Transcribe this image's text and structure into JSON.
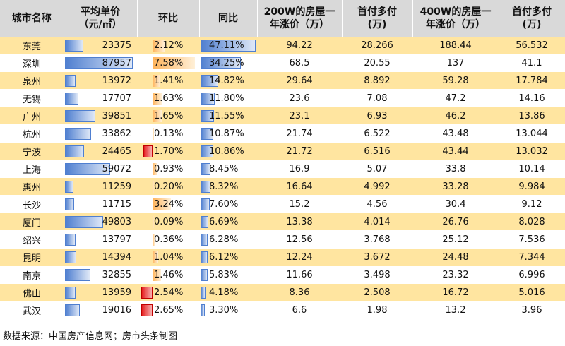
{
  "headers": {
    "city": "城市名称",
    "avg_price": "平均单价\n（元/㎡）",
    "mom": "环比",
    "yoy": "同比",
    "rise_200w": "200W的房屋一\n年涨价（万）",
    "down_200w": "首付多付\n(万)",
    "rise_400w": "400W的房屋一\n年涨价（万）",
    "down_400w": "首付多付\n(万)"
  },
  "rows": [
    {
      "city": "东莞",
      "price": "23375",
      "price_num": 23375,
      "mom": "2.12%",
      "mom_num": 2.12,
      "yoy": "47.11%",
      "yoy_num": 47.11,
      "r200": "94.22",
      "d200": "28.266",
      "r400": "188.44",
      "d400": "56.532"
    },
    {
      "city": "深圳",
      "price": "87957",
      "price_num": 87957,
      "mom": "7.58%",
      "mom_num": 7.58,
      "yoy": "34.25%",
      "yoy_num": 34.25,
      "r200": "68.5",
      "d200": "20.55",
      "r400": "137",
      "d400": "41.1"
    },
    {
      "city": "泉州",
      "price": "13972",
      "price_num": 13972,
      "mom": "1.41%",
      "mom_num": 1.41,
      "yoy": "14.82%",
      "yoy_num": 14.82,
      "r200": "29.64",
      "d200": "8.892",
      "r400": "59.28",
      "d400": "17.784"
    },
    {
      "city": "无锡",
      "price": "17707",
      "price_num": 17707,
      "mom": "1.63%",
      "mom_num": 1.63,
      "yoy": "11.80%",
      "yoy_num": 11.8,
      "r200": "23.6",
      "d200": "7.08",
      "r400": "47.2",
      "d400": "14.16"
    },
    {
      "city": "广州",
      "price": "39851",
      "price_num": 39851,
      "mom": "1.65%",
      "mom_num": 1.65,
      "yoy": "11.55%",
      "yoy_num": 11.55,
      "r200": "23.1",
      "d200": "6.93",
      "r400": "46.2",
      "d400": "13.86"
    },
    {
      "city": "杭州",
      "price": "33862",
      "price_num": 33862,
      "mom": "0.13%",
      "mom_num": 0.13,
      "yoy": "10.87%",
      "yoy_num": 10.87,
      "r200": "21.74",
      "d200": "6.522",
      "r400": "43.48",
      "d400": "13.044"
    },
    {
      "city": "宁波",
      "price": "24465",
      "price_num": 24465,
      "mom": "1.70%",
      "mom_num": -1.7,
      "yoy": "10.86%",
      "yoy_num": 10.86,
      "r200": "21.72",
      "d200": "6.516",
      "r400": "43.44",
      "d400": "13.032"
    },
    {
      "city": "上海",
      "price": "59072",
      "price_num": 59072,
      "mom": "0.93%",
      "mom_num": 0.93,
      "yoy": "8.45%",
      "yoy_num": 8.45,
      "r200": "16.9",
      "d200": "5.07",
      "r400": "33.8",
      "d400": "10.14"
    },
    {
      "city": "惠州",
      "price": "11259",
      "price_num": 11259,
      "mom": "0.20%",
      "mom_num": 0.2,
      "yoy": "8.32%",
      "yoy_num": 8.32,
      "r200": "16.64",
      "d200": "4.992",
      "r400": "33.28",
      "d400": "9.984"
    },
    {
      "city": "长沙",
      "price": "11715",
      "price_num": 11715,
      "mom": "3.24%",
      "mom_num": 3.24,
      "yoy": "7.60%",
      "yoy_num": 7.6,
      "r200": "15.2",
      "d200": "4.56",
      "r400": "30.4",
      "d400": "9.12"
    },
    {
      "city": "厦门",
      "price": "49803",
      "price_num": 49803,
      "mom": "0.09%",
      "mom_num": 0.09,
      "yoy": "6.69%",
      "yoy_num": 6.69,
      "r200": "13.38",
      "d200": "4.014",
      "r400": "26.76",
      "d400": "8.028"
    },
    {
      "city": "绍兴",
      "price": "13797",
      "price_num": 13797,
      "mom": "0.36%",
      "mom_num": 0.36,
      "yoy": "6.28%",
      "yoy_num": 6.28,
      "r200": "12.56",
      "d200": "3.768",
      "r400": "25.12",
      "d400": "7.536"
    },
    {
      "city": "昆明",
      "price": "14394",
      "price_num": 14394,
      "mom": "1.04%",
      "mom_num": 1.04,
      "yoy": "6.12%",
      "yoy_num": 6.12,
      "r200": "12.24",
      "d200": "3.672",
      "r400": "24.48",
      "d400": "7.344"
    },
    {
      "city": "南京",
      "price": "32855",
      "price_num": 32855,
      "mom": "1.46%",
      "mom_num": 1.46,
      "yoy": "5.83%",
      "yoy_num": 5.83,
      "r200": "11.66",
      "d200": "3.498",
      "r400": "23.32",
      "d400": "6.996"
    },
    {
      "city": "佛山",
      "price": "13959",
      "price_num": 13959,
      "mom": "2.54%",
      "mom_num": -2.54,
      "yoy": "4.18%",
      "yoy_num": 4.18,
      "r200": "8.36",
      "d200": "2.508",
      "r400": "16.72",
      "d400": "5.016"
    },
    {
      "city": "武汉",
      "price": "19016",
      "price_num": 19016,
      "mom": "2.65%",
      "mom_num": -2.65,
      "yoy": "3.30%",
      "yoy_num": 3.3,
      "r200": "6.6",
      "d200": "1.98",
      "r400": "13.2",
      "d400": "3.96"
    }
  ],
  "colors": {
    "header_bg": "#d9d9d9",
    "odd_row_bg": "#ffe5a0",
    "price_bar": "#4f7fd0",
    "mom_positive_bar": "#ffb35a",
    "mom_negative_bar": "#e51f1f",
    "yoy_bar": "#4f7fd0"
  },
  "footer": "数据来源：中国房产信息网；房市头条制图"
}
